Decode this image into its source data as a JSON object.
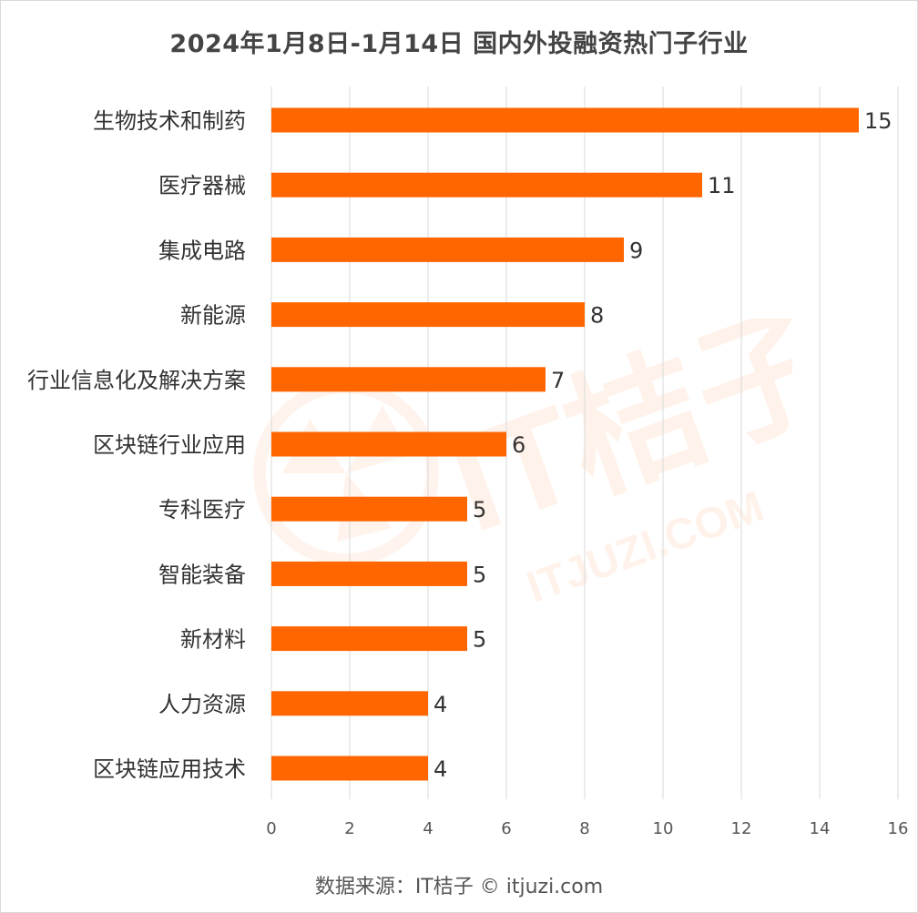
{
  "title": "2024年1月8日-1月14日 国内外投融资热门子行业",
  "source": "数据来源：IT桔子 © itjuzi.com",
  "watermark": {
    "main": "IT桔子",
    "sub": "ITJUZI.COM"
  },
  "colors": {
    "bar": "#ff6600",
    "grid": "#d9d9d9",
    "text": "#444444",
    "watermark": "#ff6600"
  },
  "chart_data": {
    "type": "bar",
    "orientation": "horizontal",
    "categories": [
      "生物技术和制药",
      "医疗器械",
      "集成电路",
      "新能源",
      "行业信息化及解决方案",
      "区块链行业应用",
      "专科医疗",
      "智能装备",
      "新材料",
      "人力资源",
      "区块链应用技术"
    ],
    "values": [
      15,
      11,
      9,
      8,
      7,
      6,
      5,
      5,
      5,
      4,
      4
    ],
    "xlim": [
      0,
      16
    ],
    "xticks": [
      "0",
      "2",
      "4",
      "6",
      "8",
      "10",
      "12",
      "14",
      "16"
    ],
    "grid": "vertical",
    "data_labels": true
  }
}
